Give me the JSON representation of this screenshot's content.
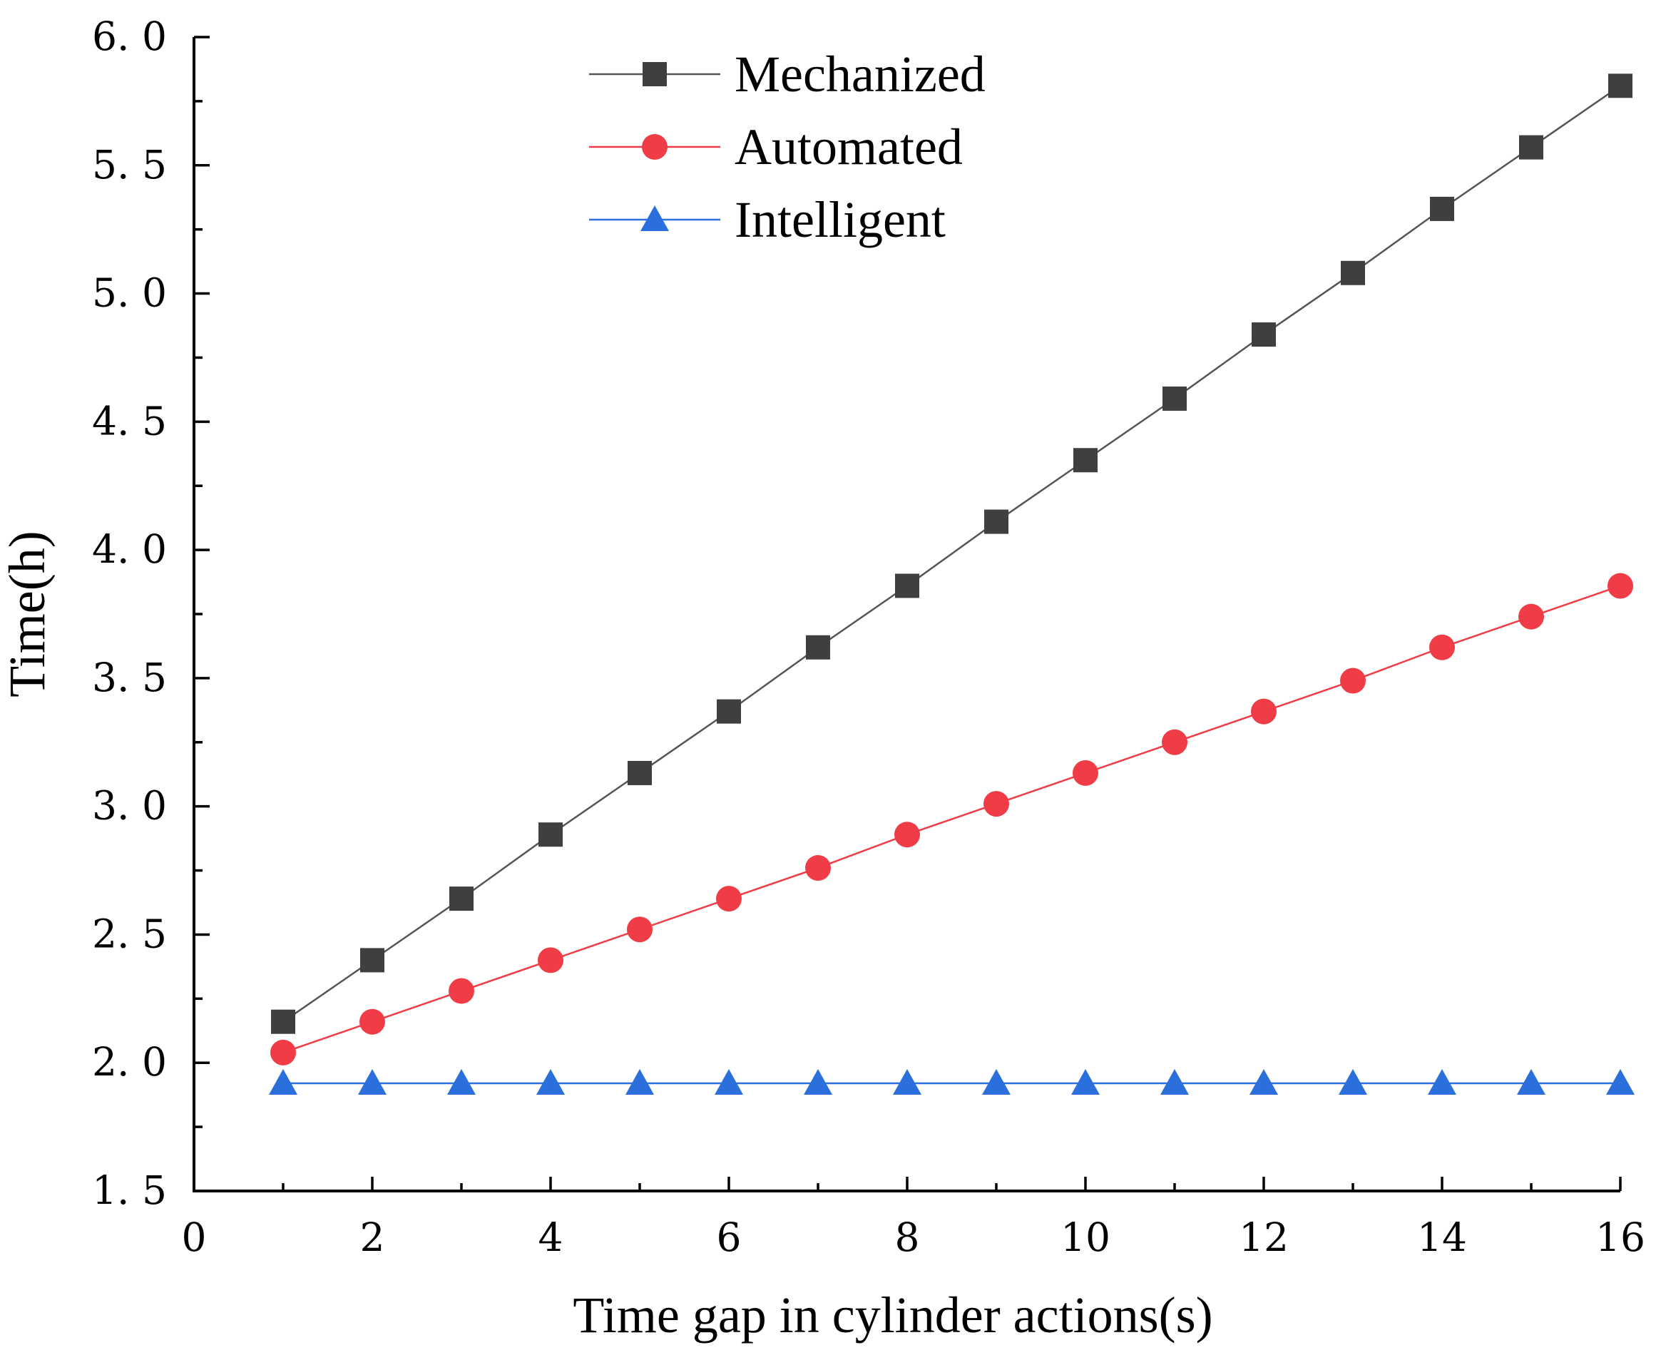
{
  "chart_data": {
    "type": "line",
    "title": "",
    "xlabel": "Time gap in cylinder actions(s)",
    "ylabel": "Time(h)",
    "xlim": [
      0,
      16
    ],
    "ylim": [
      1.5,
      6.0
    ],
    "x_major_ticks": [
      0,
      2,
      4,
      6,
      8,
      10,
      12,
      14,
      16
    ],
    "x_tick_labels": [
      "0",
      "2",
      "4",
      "6",
      "8",
      "10",
      "12",
      "14",
      "16"
    ],
    "x_minor_ticks": [
      1,
      3,
      5,
      7,
      9,
      11,
      13,
      15
    ],
    "y_major_ticks": [
      1.5,
      2.0,
      2.5,
      3.0,
      3.5,
      4.0,
      4.5,
      5.0,
      5.5,
      6.0
    ],
    "y_tick_labels": [
      "1. 5",
      "2. 0",
      "2. 5",
      "3. 0",
      "3. 5",
      "4. 0",
      "4. 5",
      "5. 0",
      "5. 5",
      "6. 0"
    ],
    "y_minor_ticks": [
      1.75,
      2.25,
      2.75,
      3.25,
      3.75,
      4.25,
      4.75,
      5.25,
      5.75
    ],
    "grid": false,
    "legend_position": "top-center",
    "x": [
      1,
      2,
      3,
      4,
      5,
      6,
      7,
      8,
      9,
      10,
      11,
      12,
      13,
      14,
      15,
      16
    ],
    "series": [
      {
        "name": "Mechanized",
        "marker": "square",
        "color": "#3f3f3f",
        "line_color": "#555555",
        "values": [
          2.16,
          2.4,
          2.64,
          2.89,
          3.13,
          3.37,
          3.62,
          3.86,
          4.11,
          4.35,
          4.59,
          4.84,
          5.08,
          5.33,
          5.57,
          5.81
        ]
      },
      {
        "name": "Automated",
        "marker": "circle",
        "color": "#f03c46",
        "line_color": "#f03c46",
        "values": [
          2.04,
          2.16,
          2.28,
          2.4,
          2.52,
          2.64,
          2.76,
          2.89,
          3.01,
          3.13,
          3.25,
          3.37,
          3.49,
          3.62,
          3.74,
          3.86
        ]
      },
      {
        "name": "Intelligent",
        "marker": "triangle",
        "color": "#2a6fdb",
        "line_color": "#2a6fdb",
        "values": [
          1.92,
          1.92,
          1.92,
          1.92,
          1.92,
          1.92,
          1.92,
          1.92,
          1.92,
          1.92,
          1.92,
          1.92,
          1.92,
          1.92,
          1.92,
          1.92
        ]
      }
    ]
  }
}
